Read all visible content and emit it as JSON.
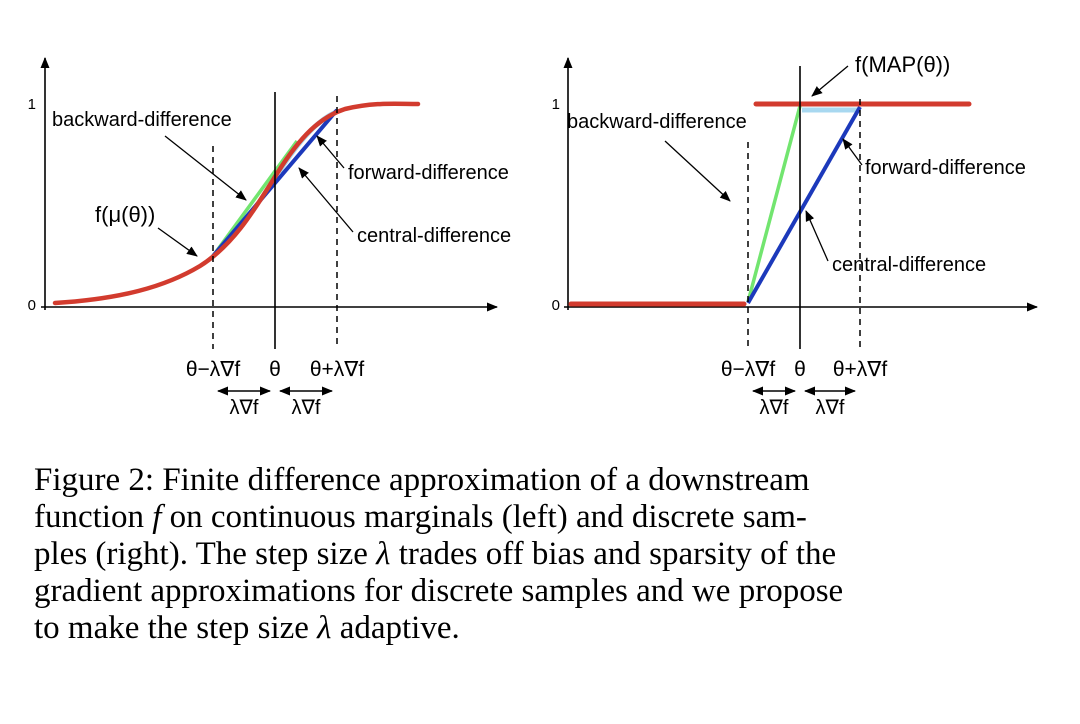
{
  "figure": {
    "colors": {
      "curve_red": "#d23b2e",
      "green": "#72e56f",
      "dark_blue": "#1c39bb",
      "light_blue": "#a8d8f0",
      "black": "#000000"
    },
    "left": {
      "tick_one": "1",
      "tick_zero": "0",
      "curve_label": "f(μ(θ))",
      "backward": "backward-difference",
      "forward": "forward-difference",
      "central": "central-difference",
      "x_left": "θ−λ∇f",
      "x_mid": "θ",
      "x_right": "θ+λ∇f",
      "step": "λ∇f"
    },
    "right": {
      "tick_one": "1",
      "tick_zero": "0",
      "map_label": "f(MAP(θ))",
      "backward": "backward-difference",
      "forward": "forward-difference",
      "central": "central-difference",
      "x_left": "θ−λ∇f",
      "x_mid": "θ",
      "x_right": "θ+λ∇f",
      "step": "λ∇f"
    }
  },
  "caption": {
    "lines": [
      [
        {
          "t": "Figure 2: Finite difference approximation of a downstream"
        }
      ],
      [
        {
          "t": "function "
        },
        {
          "t": "f",
          "i": true
        },
        {
          "t": " on continuous marginals (left) and discrete sam-"
        }
      ],
      [
        {
          "t": "ples (right). The step size "
        },
        {
          "t": "λ",
          "i": true
        },
        {
          "t": " trades off bias and sparsity of the"
        }
      ],
      [
        {
          "t": "gradient approximations for discrete samples and we propose"
        }
      ],
      [
        {
          "t": "to make the step size "
        },
        {
          "t": "λ",
          "i": true
        },
        {
          "t": " adaptive."
        }
      ]
    ]
  },
  "chart_data": [
    {
      "type": "line",
      "panel": "left: continuous marginals",
      "ylim": [
        0,
        1
      ],
      "y_ticks": [
        "0",
        "1"
      ],
      "x_ticks": [
        "θ−λ∇f",
        "θ",
        "θ+λ∇f"
      ],
      "series": [
        {
          "name": "f(μ(θ))",
          "shape": "sigmoid from 0 to 1 centered near θ",
          "color": "#d23b2e"
        },
        {
          "name": "backward-difference",
          "shape": "secant through f(θ−λ∇f) and f(θ)",
          "color": "#72e56f"
        },
        {
          "name": "forward-difference",
          "shape": "secant through f(θ) and f(θ+λ∇f)",
          "color": "#a8d8f0"
        },
        {
          "name": "central-difference",
          "shape": "secant through f(θ−λ∇f) and f(θ+λ∇f)",
          "color": "#1c39bb"
        }
      ]
    },
    {
      "type": "line",
      "panel": "right: discrete samples",
      "ylim": [
        0,
        1
      ],
      "y_ticks": [
        "0",
        "1"
      ],
      "x_ticks": [
        "θ−λ∇f",
        "θ",
        "θ+λ∇f"
      ],
      "series": [
        {
          "name": "f(MAP(θ))",
          "shape": "step function: 0 left of θ−λ∇f, 1 right of θ",
          "color": "#d23b2e"
        },
        {
          "name": "backward-difference",
          "shape": "steep secant from (θ−λ∇f,0) to (θ,1)",
          "color": "#72e56f"
        },
        {
          "name": "forward-difference",
          "shape": "flat segment at 1 from θ to θ+λ∇f",
          "color": "#a8d8f0"
        },
        {
          "name": "central-difference",
          "shape": "secant from (θ−λ∇f,0) to (θ+λ∇f,1)",
          "color": "#1c39bb"
        }
      ]
    }
  ]
}
